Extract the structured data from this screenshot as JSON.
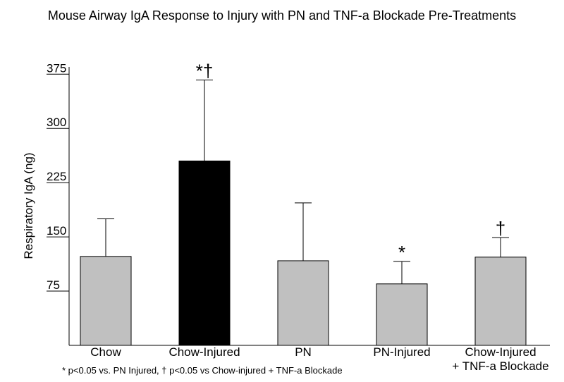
{
  "chart_data": {
    "type": "bar",
    "title": "Mouse Airway IgA Response to Injury with PN and TNF-a Blockade Pre-Treatments",
    "y_label": "Respiratory IgA (ng)",
    "footnote": "* p<0.05 vs. PN Injured, † p<0.05 vs Chow-injured + TNF-a Blockade",
    "categories": [
      "Chow",
      "Chow-Injured",
      "PN",
      "PN-Injured",
      "Chow-Injured\n+ TNF-a Blockade"
    ],
    "values": [
      123,
      255,
      117,
      85,
      122
    ],
    "errors": [
      52,
      112,
      80,
      31,
      27
    ],
    "annotations": [
      null,
      "*†",
      null,
      "*",
      "†"
    ],
    "colors": [
      "#c0c0c0",
      "#000000",
      "#c0c0c0",
      "#c0c0c0",
      "#c0c0c0"
    ],
    "ylim": [
      0,
      385
    ],
    "yticks": [
      75,
      150,
      225,
      300,
      375
    ]
  }
}
